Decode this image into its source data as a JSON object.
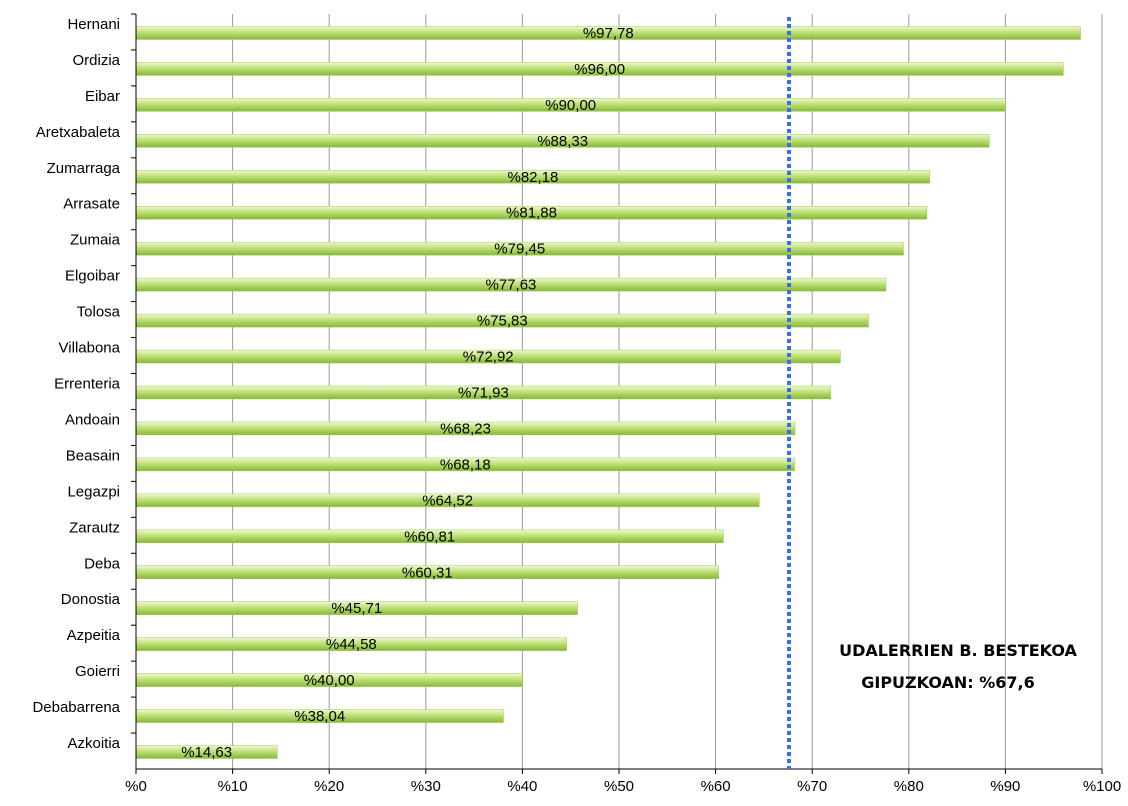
{
  "chart_data": {
    "type": "bar",
    "orientation": "horizontal",
    "categories": [
      "Hernani",
      "Ordizia",
      "Eibar",
      "Aretxabaleta",
      "Zumarraga",
      "Arrasate",
      "Zumaia",
      "Elgoibar",
      "Tolosa",
      "Villabona",
      "Errenteria",
      "Andoain",
      "Beasain",
      "Legazpi",
      "Zarautz",
      "Deba",
      "Donostia",
      "Azpeitia",
      "Goierri",
      "Debabarrena",
      "Azkoitia"
    ],
    "values": [
      97.78,
      96.0,
      90.0,
      88.33,
      82.18,
      81.88,
      79.45,
      77.63,
      75.83,
      72.92,
      71.93,
      68.23,
      68.18,
      64.52,
      60.81,
      60.31,
      45.71,
      44.58,
      40.0,
      38.04,
      14.63
    ],
    "data_labels": [
      "%97,78",
      "%96,00",
      "%90,00",
      "%88,33",
      "%82,18",
      "%81,88",
      "%79,45",
      "%77,63",
      "%75,83",
      "%72,92",
      "%71,93",
      "%68,23",
      "%68,18",
      "%64,52",
      "%60,81",
      "%60,31",
      "%45,71",
      "%44,58",
      "%40,00",
      "%38,04",
      "%14,63"
    ],
    "x_ticks": [
      0,
      10,
      20,
      30,
      40,
      50,
      60,
      70,
      80,
      90,
      100
    ],
    "x_tick_labels": [
      "%0",
      "%10",
      "%20",
      "%30",
      "%40",
      "%50",
      "%60",
      "%70",
      "%80",
      "%90",
      "%100"
    ],
    "xlim": [
      0,
      100
    ],
    "grid": "vertical",
    "reference_line": {
      "value": 67.6,
      "style": "dotted",
      "color": "#3a6cf0"
    },
    "annotation": [
      "UDALERRIEN B. BESTEKOA",
      "GIPUZKOAN: %67,6"
    ],
    "colors": {
      "bar_light": "#dff0b5",
      "bar_dark": "#8cbf3a",
      "grid": "#9a9a9a",
      "axis": "#000000"
    }
  }
}
